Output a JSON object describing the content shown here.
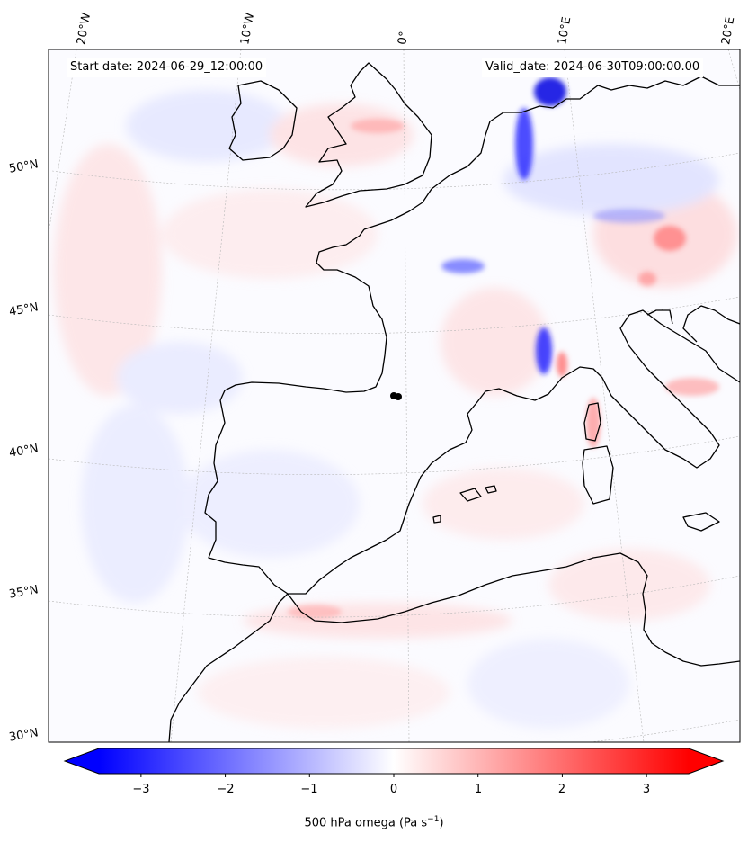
{
  "header": {
    "start_date": "Start date: 2024-06-29_12:00:00",
    "valid_date": "Valid_date: 2024-06-30T09:00:00.00"
  },
  "lon_labels": [
    "20°W",
    "10°W",
    "0°",
    "10°E",
    "20°E"
  ],
  "lat_labels": [
    "50°N",
    "45°N",
    "40°N",
    "35°N",
    "30°N"
  ],
  "colorbar": {
    "label": "500 hPa omega (Pa s",
    "label_exp": "−1",
    "label_close": ")",
    "ticks": [
      "−3",
      "−2",
      "−1",
      "0",
      "1",
      "2",
      "3"
    ],
    "tick_values": [
      -3,
      -2,
      -1,
      0,
      1,
      2,
      3
    ],
    "range": [
      -3.5,
      3.5
    ],
    "colormap": "bwr",
    "colors": {
      "low": "#0000ff",
      "mid": "#ffffff",
      "high": "#ff0000"
    }
  },
  "colors": {
    "coastline": "#000000",
    "gridline": "#b0b0b0"
  }
}
